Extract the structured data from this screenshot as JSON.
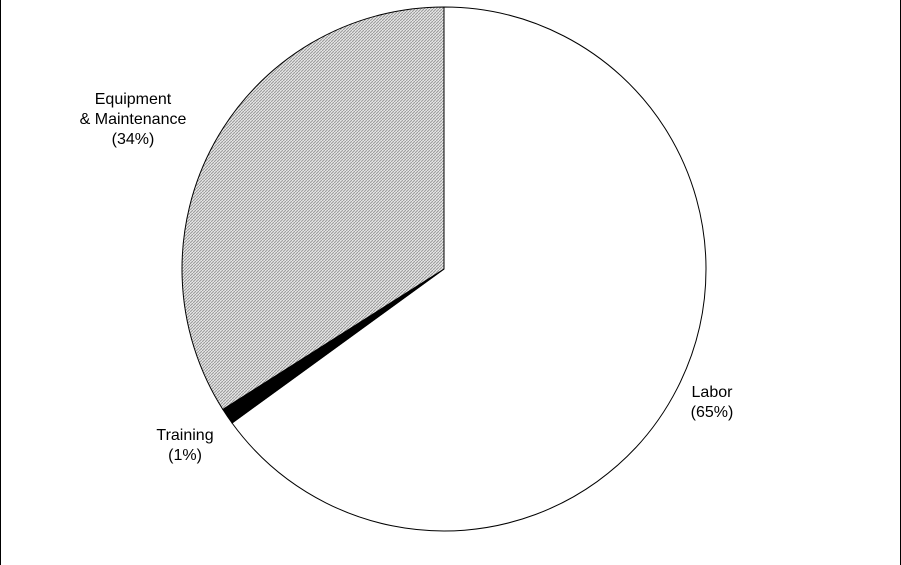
{
  "chart_data": {
    "type": "pie",
    "title": "",
    "legend": "none",
    "start_angle_deg": 0,
    "direction": "clockwise",
    "slices": [
      {
        "key": "labor",
        "label_lines": [
          "Labor",
          "(65%)"
        ],
        "value": 65,
        "fill": "#ffffff"
      },
      {
        "key": "training",
        "label_lines": [
          "Training",
          "(1%)"
        ],
        "value": 1,
        "fill": "#000000"
      },
      {
        "key": "equipment",
        "label_lines": [
          "Equipment",
          "& Maintenance",
          "(34%)"
        ],
        "value": 34,
        "fill": "#c8c8c8",
        "pattern": "diagonal-hatch"
      }
    ]
  }
}
